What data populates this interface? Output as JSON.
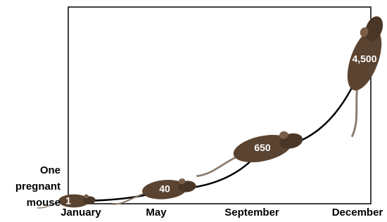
{
  "chart_data": {
    "type": "line",
    "annotation": "One pregnant mouse",
    "categories": [
      "January",
      "May",
      "September",
      "December"
    ],
    "values": [
      1,
      40,
      650,
      4500
    ],
    "value_labels": [
      "1",
      "40",
      "650",
      "4,500"
    ],
    "color": "#5a4330",
    "line_color": "#000000"
  }
}
